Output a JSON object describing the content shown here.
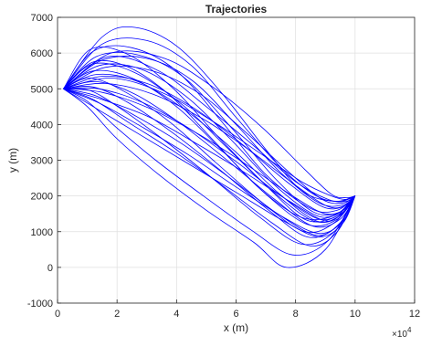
{
  "chart_data": {
    "type": "line",
    "title": "Trajectories",
    "xlabel": "x (m)",
    "ylabel": "y (m)",
    "x_exponent_base": "×10",
    "x_exponent_power": "4",
    "xlim": [
      0,
      12
    ],
    "ylim": [
      -1000,
      7000
    ],
    "xticks": [
      0,
      2,
      4,
      6,
      8,
      10,
      12
    ],
    "yticks": [
      -1000,
      0,
      1000,
      2000,
      3000,
      4000,
      5000,
      6000,
      7000
    ],
    "xtick_labels": [
      "0",
      "2",
      "4",
      "6",
      "8",
      "10",
      "12"
    ],
    "ytick_labels": [
      "-1000",
      "0",
      "1000",
      "2000",
      "3000",
      "4000",
      "5000",
      "6000",
      "7000"
    ],
    "grid": true,
    "line_color": "#0000ff",
    "x_units_note": "x values are in units of 10^4 m as printed on the axis",
    "start_point": [
      0.2,
      5000
    ],
    "end_point": [
      10,
      2000
    ],
    "series": [
      {
        "x": [
          0.2,
          1.5,
          2.6,
          4.0,
          5.5,
          7.0,
          8.2,
          9.3,
          10
        ],
        "y": [
          5000,
          6450,
          6720,
          6200,
          4900,
          3300,
          2150,
          1850,
          2000
        ]
      },
      {
        "x": [
          0.2,
          1.5,
          3.0,
          4.5,
          6.0,
          7.5,
          8.7,
          9.5,
          10
        ],
        "y": [
          5000,
          6250,
          6350,
          5650,
          4200,
          2800,
          2000,
          1850,
          2000
        ]
      },
      {
        "x": [
          0.2,
          1.2,
          2.5,
          4.0,
          5.5,
          7.0,
          8.5,
          9.4,
          10
        ],
        "y": [
          5000,
          6050,
          6150,
          5500,
          4100,
          2600,
          1650,
          1600,
          2000
        ]
      },
      {
        "x": [
          0.2,
          1.3,
          2.7,
          4.2,
          5.8,
          7.3,
          8.6,
          9.5,
          10
        ],
        "y": [
          5000,
          5900,
          5950,
          5350,
          3950,
          2500,
          1550,
          1550,
          2000
        ]
      },
      {
        "x": [
          0.2,
          1.5,
          3.0,
          4.5,
          6.0,
          7.5,
          8.8,
          9.6,
          10
        ],
        "y": [
          5000,
          5800,
          5850,
          5250,
          4000,
          2650,
          1800,
          1750,
          2000
        ]
      },
      {
        "x": [
          0.2,
          1.2,
          2.4,
          3.8,
          5.3,
          6.8,
          8.2,
          9.3,
          10
        ],
        "y": [
          5000,
          5750,
          5600,
          4800,
          3500,
          2200,
          1400,
          1450,
          2000
        ]
      },
      {
        "x": [
          0.2,
          1.4,
          2.8,
          4.3,
          5.8,
          7.3,
          8.7,
          9.5,
          10
        ],
        "y": [
          5000,
          5650,
          5550,
          4800,
          3600,
          2300,
          1450,
          1550,
          2000
        ]
      },
      {
        "x": [
          0.2,
          1.6,
          3.2,
          4.8,
          6.3,
          7.8,
          8.9,
          9.6,
          10
        ],
        "y": [
          5000,
          5600,
          5500,
          4850,
          3800,
          2650,
          1900,
          1800,
          2000
        ]
      },
      {
        "x": [
          0.2,
          1.2,
          2.5,
          4.0,
          5.5,
          7.0,
          8.4,
          9.4,
          10
        ],
        "y": [
          5000,
          5500,
          5300,
          4500,
          3300,
          2050,
          1200,
          1350,
          2000
        ]
      },
      {
        "x": [
          0.2,
          1.3,
          2.7,
          4.3,
          5.9,
          7.4,
          8.7,
          9.5,
          10
        ],
        "y": [
          5000,
          5400,
          5200,
          4400,
          3300,
          2100,
          1300,
          1450,
          2000
        ]
      },
      {
        "x": [
          0.2,
          1.5,
          3.0,
          4.6,
          6.2,
          7.7,
          8.9,
          9.6,
          10
        ],
        "y": [
          5000,
          5350,
          5150,
          4450,
          3450,
          2400,
          1700,
          1700,
          2000
        ]
      },
      {
        "x": [
          0.2,
          1.1,
          2.3,
          3.8,
          5.3,
          6.9,
          8.3,
          9.3,
          10
        ],
        "y": [
          5000,
          5300,
          4900,
          4050,
          2950,
          1800,
          1000,
          1250,
          2000
        ]
      },
      {
        "x": [
          0.2,
          1.3,
          2.6,
          4.1,
          5.7,
          7.3,
          8.6,
          9.5,
          10
        ],
        "y": [
          5000,
          5200,
          4850,
          4050,
          3000,
          1900,
          1150,
          1350,
          2000
        ]
      },
      {
        "x": [
          0.2,
          1.6,
          3.2,
          4.9,
          6.5,
          8.0,
          9.1,
          9.7,
          10
        ],
        "y": [
          5000,
          5150,
          4850,
          4150,
          3250,
          2300,
          1700,
          1750,
          2000
        ]
      },
      {
        "x": [
          0.2,
          1.2,
          2.4,
          3.9,
          5.5,
          7.1,
          8.4,
          9.4,
          10
        ],
        "y": [
          5000,
          5050,
          4600,
          3750,
          2700,
          1600,
          850,
          1150,
          2000
        ]
      },
      {
        "x": [
          0.2,
          1.4,
          2.9,
          4.5,
          6.1,
          7.6,
          8.8,
          9.6,
          10
        ],
        "y": [
          5000,
          5000,
          4600,
          3850,
          2900,
          1950,
          1350,
          1550,
          2000
        ]
      },
      {
        "x": [
          0.2,
          1.1,
          2.2,
          3.6,
          5.2,
          6.8,
          8.2,
          9.3,
          10
        ],
        "y": [
          5000,
          4950,
          4400,
          3550,
          2500,
          1400,
          650,
          1000,
          2000
        ]
      },
      {
        "x": [
          0.2,
          1.5,
          3.1,
          4.8,
          6.4,
          7.9,
          9.0,
          9.7,
          10
        ],
        "y": [
          5000,
          4900,
          4450,
          3700,
          2850,
          2000,
          1500,
          1650,
          2000
        ]
      },
      {
        "x": [
          0.2,
          1.3,
          2.6,
          4.2,
          5.8,
          7.4,
          8.7,
          9.5,
          10
        ],
        "y": [
          5000,
          4800,
          4250,
          3450,
          2500,
          1500,
          900,
          1250,
          2000
        ]
      },
      {
        "x": [
          0.2,
          1.2,
          2.4,
          4.0,
          5.6,
          7.2,
          8.5,
          9.4,
          10
        ],
        "y": [
          5000,
          4700,
          4050,
          3200,
          2250,
          1250,
          600,
          1000,
          2000
        ]
      },
      {
        "x": [
          0.2,
          1.0,
          2.0,
          3.3,
          4.9,
          6.5,
          7.9,
          9.1,
          10
        ],
        "y": [
          5000,
          4650,
          3900,
          3000,
          2000,
          1050,
          350,
          750,
          2000
        ]
      },
      {
        "x": [
          0.2,
          1.4,
          2.8,
          4.4,
          6.0,
          7.6,
          8.8,
          9.6,
          10
        ],
        "y": [
          5000,
          4600,
          3950,
          3150,
          2250,
          1400,
          950,
          1300,
          2000
        ]
      },
      {
        "x": [
          0.2,
          1.0,
          2.0,
          3.4,
          5.0,
          6.6,
          7.7,
          9.0,
          10
        ],
        "y": [
          5000,
          4500,
          3600,
          2600,
          1600,
          700,
          0,
          500,
          2000
        ]
      },
      {
        "x": [
          0.2,
          1.3,
          2.7,
          4.3,
          6.0,
          7.6,
          8.8,
          9.6,
          10
        ],
        "y": [
          5000,
          4450,
          3750,
          2950,
          2100,
          1300,
          850,
          1250,
          2000
        ]
      },
      {
        "x": [
          0.2,
          1.7,
          3.4,
          5.0,
          6.6,
          8.0,
          9.1,
          9.7,
          10
        ],
        "y": [
          5000,
          5900,
          5500,
          4500,
          3400,
          2400,
          1900,
          1850,
          2000
        ]
      },
      {
        "x": [
          0.2,
          1.8,
          3.5,
          5.2,
          6.8,
          8.2,
          9.2,
          9.7,
          10
        ],
        "y": [
          5000,
          5300,
          4900,
          4100,
          3200,
          2400,
          2000,
          1900,
          2000
        ]
      },
      {
        "x": [
          0.2,
          1.1,
          2.4,
          3.9,
          5.4,
          7.0,
          8.3,
          9.3,
          10
        ],
        "y": [
          5000,
          6100,
          5950,
          5000,
          3650,
          2300,
          1350,
          1400,
          2000
        ]
      },
      {
        "x": [
          0.2,
          1.8,
          3.6,
          5.3,
          6.9,
          8.3,
          9.2,
          9.7,
          10
        ],
        "y": [
          5000,
          6000,
          5850,
          5000,
          3900,
          2750,
          2050,
          1950,
          2000
        ]
      },
      {
        "x": [
          0.2,
          1.2,
          2.6,
          4.2,
          5.7,
          7.2,
          8.6,
          9.5,
          10
        ],
        "y": [
          5000,
          5700,
          5450,
          4550,
          3350,
          2150,
          1300,
          1450,
          2000
        ]
      },
      {
        "x": [
          0.2,
          1.5,
          3.1,
          4.7,
          6.3,
          7.8,
          9.0,
          9.6,
          10
        ],
        "y": [
          5000,
          4700,
          4200,
          3450,
          2650,
          1850,
          1300,
          1550,
          2000
        ]
      }
    ]
  }
}
